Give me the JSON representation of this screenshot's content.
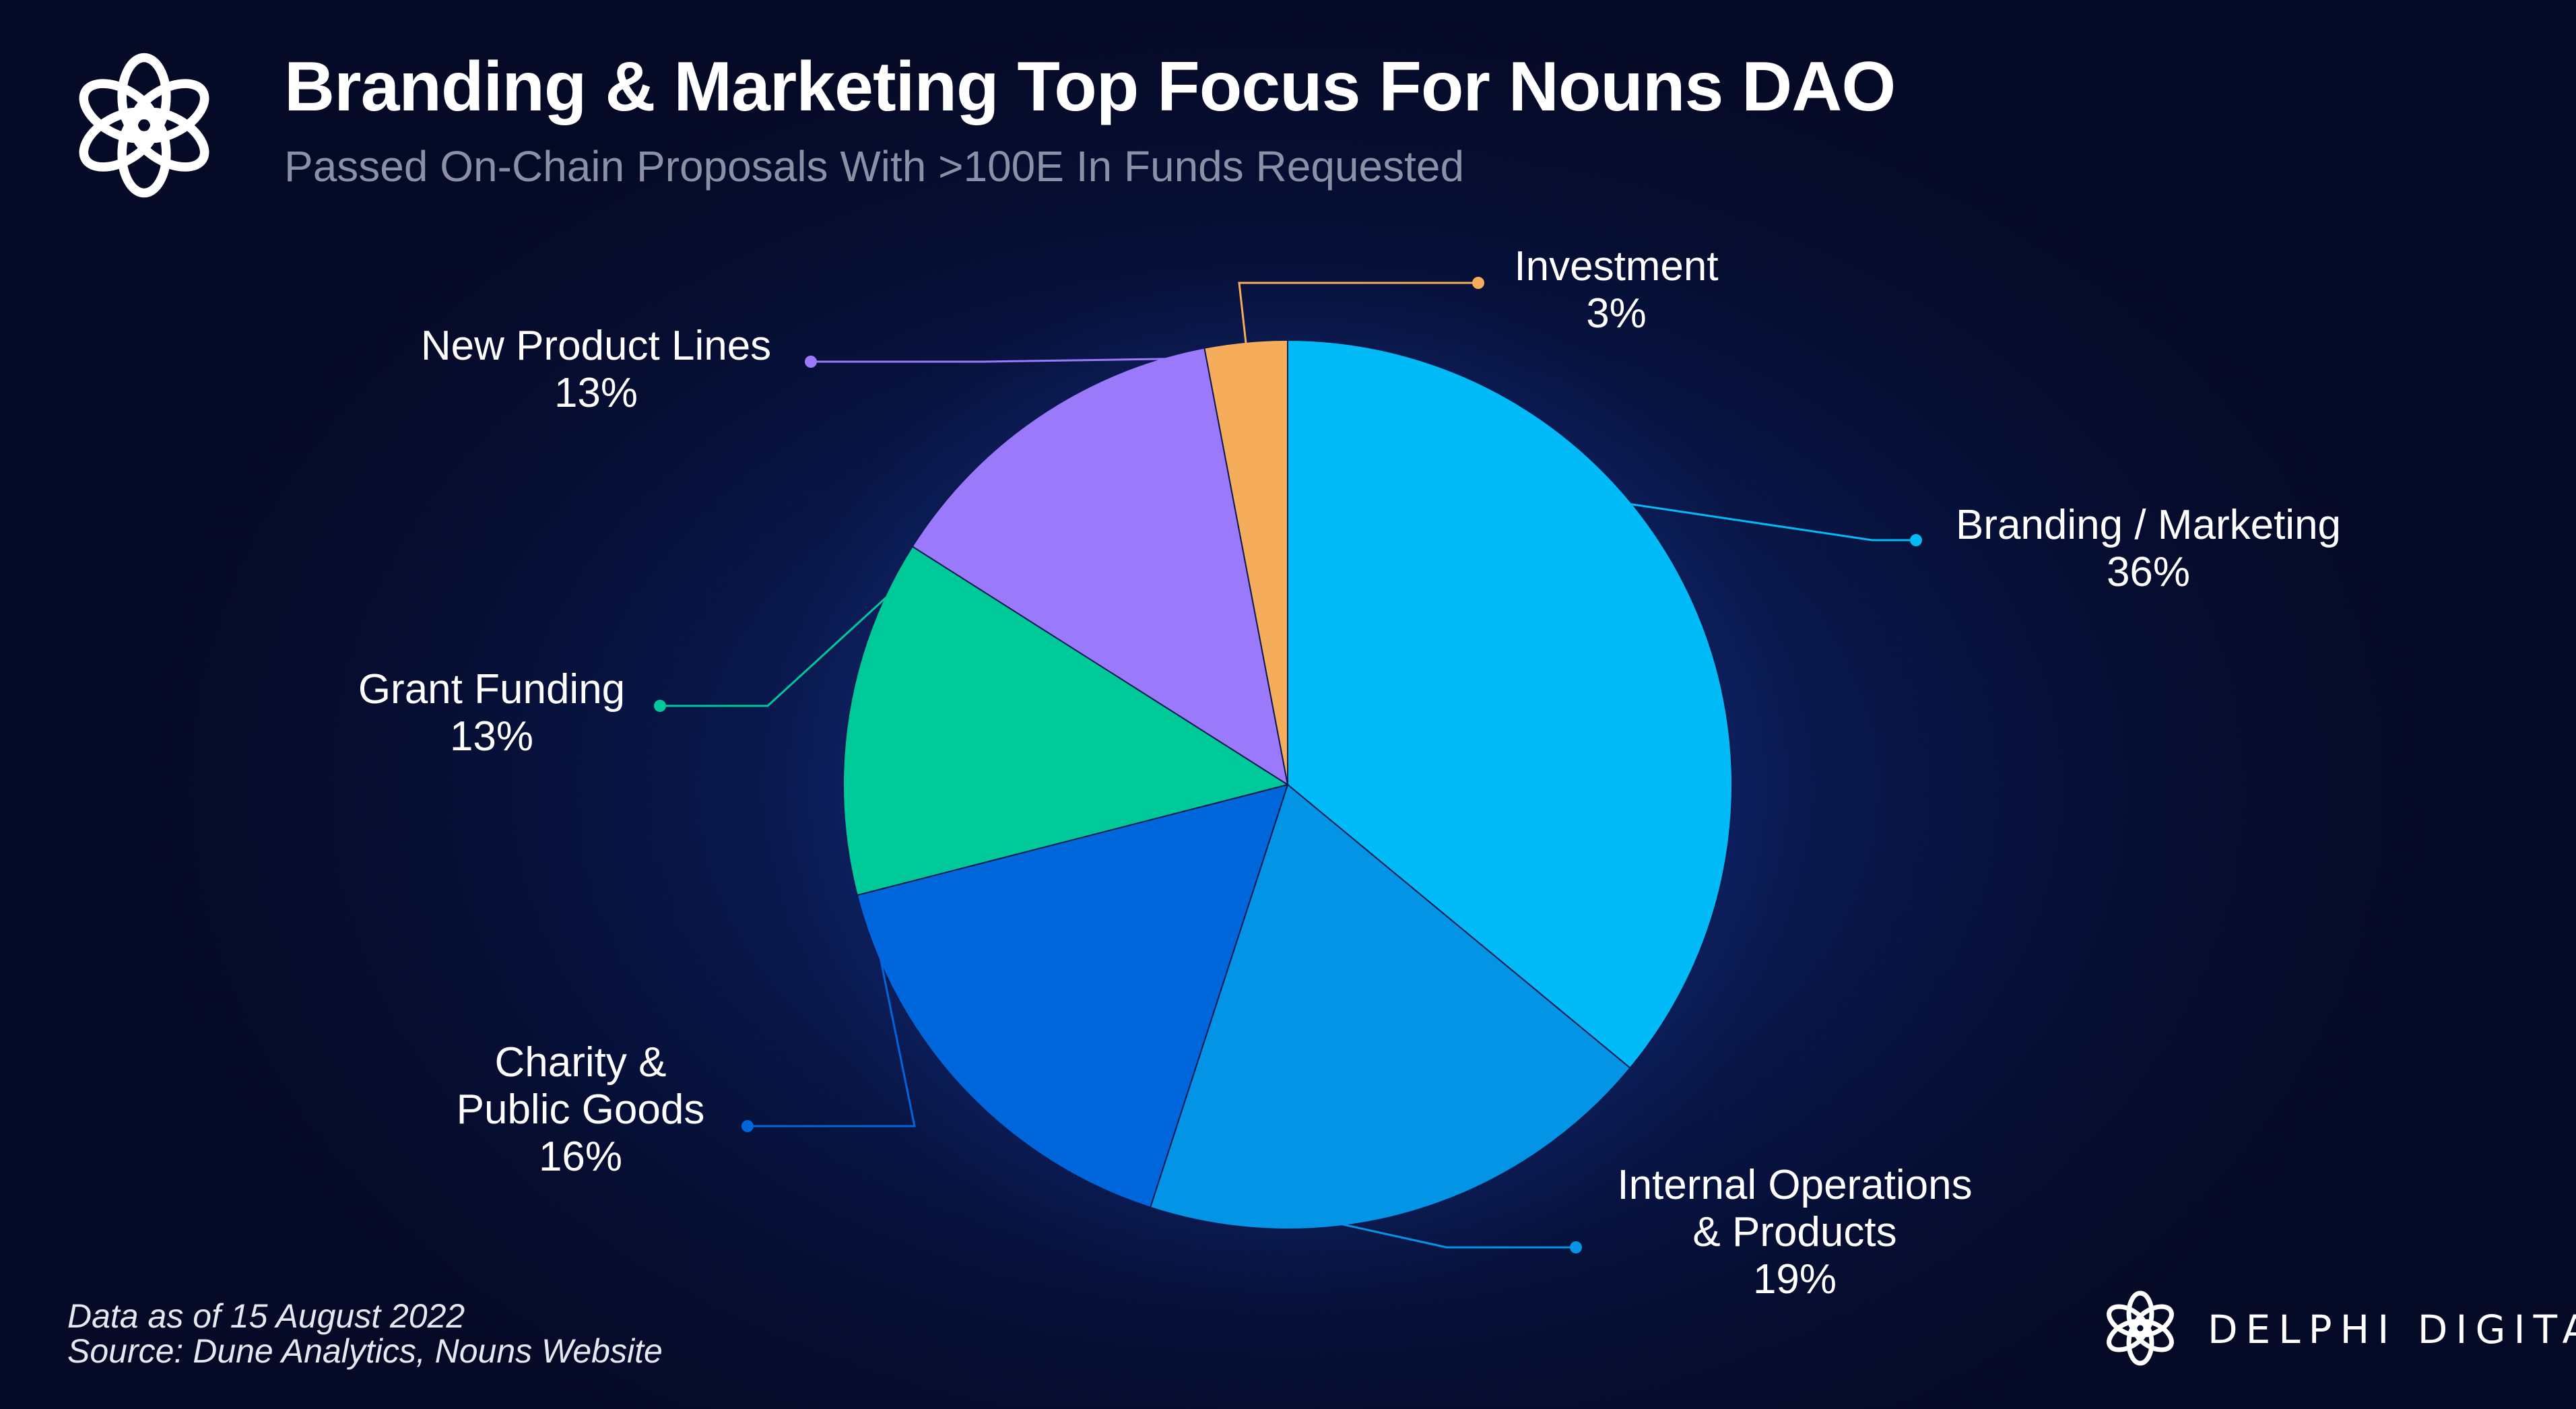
{
  "header": {
    "title": "Branding & Marketing Top Focus For Nouns DAO",
    "subtitle": "Passed On-Chain Proposals With >100E In Funds Requested"
  },
  "footer": {
    "date_note": "Data as of 15 August 2022",
    "source": "Source: Dune Analytics, Nouns Website",
    "brand": "DELPHI DIGITAL"
  },
  "icons": {
    "header_logo": "delphi-knot-icon",
    "footer_logo": "delphi-knot-icon"
  },
  "chart_data": {
    "type": "pie",
    "title": "Branding & Marketing Top Focus For Nouns DAO",
    "subtitle": "Passed On-Chain Proposals With >100E In Funds Requested",
    "slices": [
      {
        "name": "Branding / Marketing",
        "label_lines": [
          "Branding / Marketing"
        ],
        "value": 36,
        "display": "36%",
        "color": "#00bbf7"
      },
      {
        "name": "Internal Operations & Products",
        "label_lines": [
          "Internal Operations",
          "& Products"
        ],
        "value": 19,
        "display": "19%",
        "color": "#0394e6"
      },
      {
        "name": "Charity & Public Goods",
        "label_lines": [
          "Charity &",
          "Public Goods"
        ],
        "value": 16,
        "display": "16%",
        "color": "#0066db"
      },
      {
        "name": "Grant Funding",
        "label_lines": [
          "Grant Funding"
        ],
        "value": 13,
        "display": "13%",
        "color": "#00c999"
      },
      {
        "name": "New Product Lines",
        "label_lines": [
          "New Product Lines"
        ],
        "value": 13,
        "display": "13%",
        "color": "#9b79fb"
      },
      {
        "name": "Investment",
        "label_lines": [
          "Investment"
        ],
        "value": 3,
        "display": "3%",
        "color": "#f5ad5c"
      }
    ],
    "start_angle": "12 o'clock",
    "direction": "clockwise",
    "legend": "none (direct labels with leader lines)"
  }
}
